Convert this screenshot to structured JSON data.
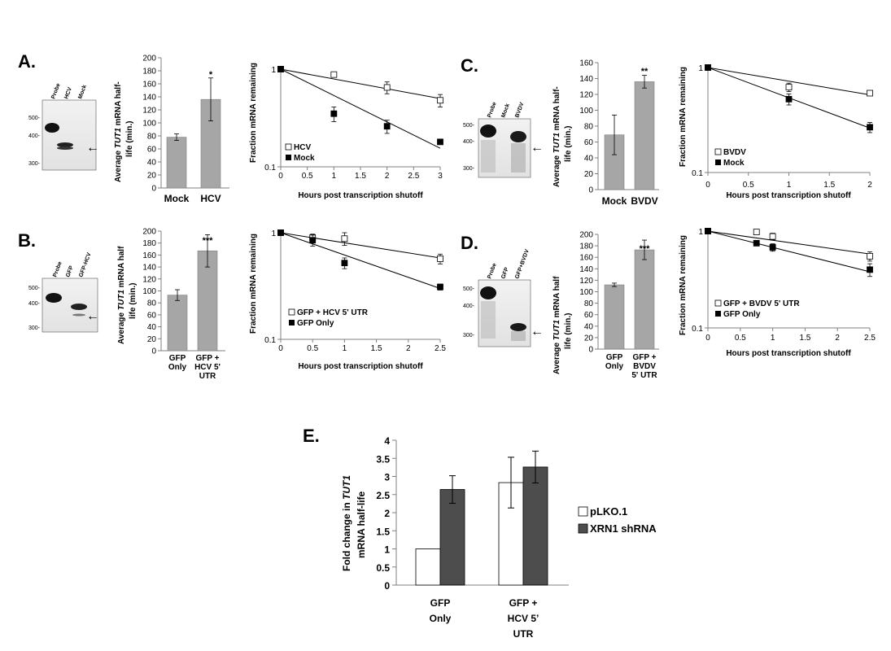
{
  "panels": {
    "A": {
      "letter": "A.",
      "gel": {
        "lanes": [
          "Probe",
          "HCV",
          "Mock"
        ],
        "markers": [
          "500-",
          "400-",
          "300-"
        ],
        "arrow": "←"
      },
      "bar": {
        "ylabel_pre": "Average ",
        "ylabel_italic": "TUT1",
        "ylabel_post": " mRNA half-",
        "ylabel_line2": "life (min.)",
        "significance": "*"
      },
      "decay": {
        "ylabel": "Fraction mRNA remaining",
        "xlabel": "Hours post transcription shutoff",
        "legend": [
          "HCV",
          "Mock"
        ]
      }
    },
    "B": {
      "letter": "B.",
      "gel": {
        "lanes": [
          "Probe",
          "GFP",
          "GFP-HCV"
        ],
        "markers": [
          "500-",
          "400-",
          "300-"
        ],
        "arrow": "←"
      },
      "bar": {
        "ylabel_pre": "Average ",
        "ylabel_italic": "TUT1",
        "ylabel_post": " mRNA half",
        "ylabel_line2": "life (min.)",
        "significance": "***"
      },
      "decay": {
        "ylabel": "Fraction mRNA remaining",
        "xlabel": "Hours post transcription shutoff",
        "legend": [
          "GFP + HCV 5' UTR",
          "GFP Only"
        ]
      }
    },
    "C": {
      "letter": "C.",
      "gel": {
        "lanes": [
          "Probe",
          "Mock",
          "BVDV"
        ],
        "markers": [
          "500-",
          "400-",
          "300-"
        ],
        "arrow": "←"
      },
      "bar": {
        "ylabel_pre": "Average ",
        "ylabel_italic": "TUT1",
        "ylabel_post": " mRNA half-",
        "ylabel_line2": "life (min.)",
        "significance": "**"
      },
      "decay": {
        "ylabel": "Fraction mRNA remaining",
        "xlabel": "Hours post transcription shutoff",
        "legend": [
          "BVDV",
          "Mock"
        ]
      }
    },
    "D": {
      "letter": "D.",
      "gel": {
        "lanes": [
          "Probe",
          "GFP",
          "GFP+BVDV"
        ],
        "markers": [
          "500-",
          "400-",
          "300-"
        ],
        "arrow": "←"
      },
      "bar": {
        "ylabel_pre": "Average ",
        "ylabel_italic": "TUT1",
        "ylabel_post": " mRNA half",
        "ylabel_line2": "life (min.)",
        "significance": "***"
      },
      "decay": {
        "ylabel": "Fraction mRNA remaining",
        "xlabel": "Hours post transcription shutoff",
        "legend": [
          "GFP + BVDV 5' UTR",
          "GFP Only"
        ]
      }
    },
    "E": {
      "letter": "E.",
      "ylabel_pre": "Fold change in ",
      "ylabel_italic": "TUT1",
      "ylabel_line2": "mRNA half-life",
      "legend": [
        "pLKO.1",
        "XRN1 shRNA"
      ]
    }
  },
  "colors": {
    "grey_bar": "#a6a6a6",
    "dark_bar": "#4d4d4d",
    "white_bar": "#ffffff",
    "axis": "#808080"
  },
  "chart_data": [
    {
      "id": "A-bar",
      "type": "bar",
      "categories": [
        "Mock",
        "HCV"
      ],
      "values": [
        78,
        136
      ],
      "errors": [
        5,
        33
      ],
      "ylim": [
        0,
        200
      ],
      "yticks": [
        0,
        20,
        40,
        60,
        80,
        100,
        120,
        140,
        160,
        180,
        200
      ],
      "grid": false
    },
    {
      "id": "A-decay",
      "type": "scatter",
      "yscale": "log",
      "xlim": [
        0,
        3
      ],
      "xticks": [
        0,
        0.5,
        1,
        1.5,
        2,
        2.5,
        3
      ],
      "ylim": [
        0.1,
        1
      ],
      "yticks": [
        0.1,
        1
      ],
      "series": [
        {
          "name": "HCV",
          "marker": "open-square",
          "x": [
            0,
            1,
            2,
            3
          ],
          "y": [
            1.0,
            0.88,
            0.65,
            0.48
          ],
          "err": [
            0,
            0.05,
            0.09,
            0.07
          ],
          "fit": [
            1.0,
            0.5
          ]
        },
        {
          "name": "Mock",
          "marker": "filled-square",
          "x": [
            0,
            1,
            2,
            3
          ],
          "y": [
            1.0,
            0.35,
            0.26,
            0.18
          ],
          "err": [
            0,
            0.06,
            0.04,
            0
          ],
          "fit": [
            1.0,
            0.155
          ]
        }
      ]
    },
    {
      "id": "B-bar",
      "type": "bar",
      "categories": [
        "GFP Only",
        "GFP + HCV 5' UTR"
      ],
      "values": [
        93,
        167
      ],
      "errors": [
        9,
        27
      ],
      "ylim": [
        0,
        200
      ],
      "yticks": [
        0,
        20,
        40,
        60,
        80,
        100,
        120,
        140,
        160,
        180,
        200
      ],
      "grid": false
    },
    {
      "id": "B-decay",
      "type": "scatter",
      "yscale": "log",
      "xlim": [
        0,
        2.5
      ],
      "xticks": [
        0,
        0.5,
        1,
        1.5,
        2,
        2.5
      ],
      "ylim": [
        0.1,
        1
      ],
      "yticks": [
        0.1,
        1
      ],
      "series": [
        {
          "name": "GFP + HCV 5' UTR",
          "marker": "open-square",
          "x": [
            0,
            0.5,
            1,
            2.5
          ],
          "y": [
            1.0,
            0.9,
            0.88,
            0.57
          ],
          "err": [
            0,
            0.07,
            0.12,
            0.06
          ],
          "fit": [
            1.0,
            0.58
          ]
        },
        {
          "name": "GFP Only",
          "marker": "filled-square",
          "x": [
            0,
            0.5,
            1,
            2.5
          ],
          "y": [
            1.0,
            0.85,
            0.52,
            0.31
          ],
          "err": [
            0,
            0.1,
            0.06,
            0.02
          ],
          "fit": [
            1.0,
            0.3
          ]
        }
      ]
    },
    {
      "id": "C-bar",
      "type": "bar",
      "categories": [
        "Mock",
        "BVDV"
      ],
      "values": [
        69,
        136
      ],
      "errors": [
        25,
        8
      ],
      "ylim": [
        0,
        160
      ],
      "yticks": [
        0,
        20,
        40,
        60,
        80,
        100,
        120,
        140,
        160
      ],
      "grid": false
    },
    {
      "id": "C-decay",
      "type": "scatter",
      "yscale": "log",
      "xlim": [
        0,
        2
      ],
      "xticks": [
        0,
        0.5,
        1,
        1.5,
        2
      ],
      "ylim": [
        0.1,
        1
      ],
      "yticks": [
        0.1,
        1
      ],
      "series": [
        {
          "name": "BVDV",
          "marker": "open-square",
          "x": [
            0,
            1,
            2
          ],
          "y": [
            1.0,
            0.65,
            0.57
          ],
          "err": [
            0,
            0.06,
            0
          ],
          "fit": [
            1.0,
            0.55
          ]
        },
        {
          "name": "Mock",
          "marker": "filled-square",
          "x": [
            0,
            1,
            2
          ],
          "y": [
            1.0,
            0.5,
            0.27
          ],
          "err": [
            0,
            0.06,
            0.03
          ],
          "fit": [
            1.0,
            0.265
          ]
        }
      ]
    },
    {
      "id": "D-bar",
      "type": "bar",
      "categories": [
        "GFP Only",
        "GFP + BVDV 5' UTR"
      ],
      "values": [
        112,
        173
      ],
      "errors": [
        3,
        17
      ],
      "ylim": [
        0,
        200
      ],
      "yticks": [
        0,
        20,
        40,
        60,
        80,
        100,
        120,
        140,
        160,
        180,
        200
      ],
      "grid": false
    },
    {
      "id": "D-decay",
      "type": "scatter",
      "yscale": "log",
      "xlim": [
        0,
        2.5
      ],
      "xticks": [
        0,
        0.5,
        1,
        1.5,
        2,
        2.5
      ],
      "ylim": [
        0.1,
        1
      ],
      "yticks": [
        0.1,
        1
      ],
      "series": [
        {
          "name": "GFP + BVDV 5' UTR",
          "marker": "open-square",
          "x": [
            0,
            0.75,
            1,
            2.5
          ],
          "y": [
            1.0,
            0.98,
            0.88,
            0.55
          ],
          "err": [
            0,
            0,
            0.07,
            0.06
          ],
          "fit": [
            1.0,
            0.58
          ]
        },
        {
          "name": "GFP Only",
          "marker": "filled-square",
          "x": [
            0,
            0.75,
            1,
            2.5
          ],
          "y": [
            1.0,
            0.75,
            0.68,
            0.4
          ],
          "err": [
            0,
            0.04,
            0.06,
            0.06
          ],
          "fit": [
            1.0,
            0.38
          ]
        }
      ]
    },
    {
      "id": "E-bar",
      "type": "bar",
      "categories": [
        "GFP Only",
        "GFP + HCV 5' UTR"
      ],
      "series": [
        {
          "name": "pLKO.1",
          "values": [
            1.0,
            2.83
          ],
          "errors": [
            0,
            0.7
          ]
        },
        {
          "name": "XRN1 shRNA",
          "values": [
            2.64,
            3.26
          ],
          "errors": [
            0.38,
            0.44
          ]
        }
      ],
      "ylim": [
        0,
        4
      ],
      "yticks": [
        0,
        0.5,
        1,
        1.5,
        2,
        2.5,
        3,
        3.5,
        4
      ],
      "grid": false,
      "legend": "right"
    }
  ]
}
